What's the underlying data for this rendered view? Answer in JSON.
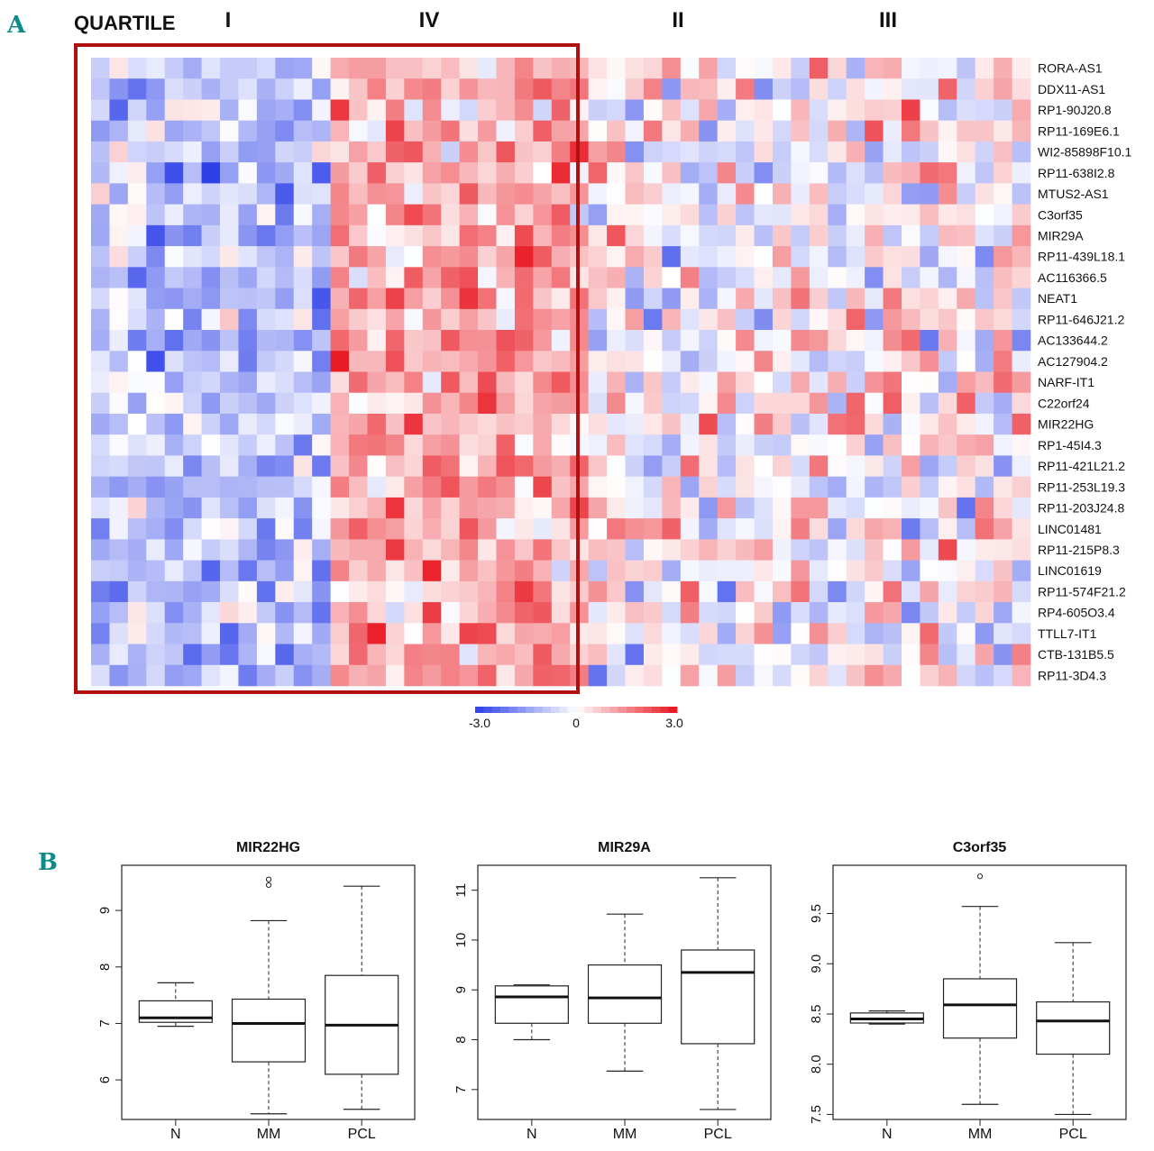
{
  "panel_a_label": "A",
  "panel_b_label": "B",
  "colors": {
    "accent": "#0d8a8a",
    "highlight_box": "#b01010",
    "low": "#2a3ee8",
    "mid": "#ffffff",
    "high": "#e8101a"
  },
  "chart_data": [
    {
      "type": "heatmap",
      "title": "",
      "group_header_label": "QUARTILE",
      "column_groups": [
        {
          "label": "I",
          "highlighted": true
        },
        {
          "label": "IV",
          "highlighted": true
        },
        {
          "label": "II",
          "highlighted": false
        },
        {
          "label": "III",
          "highlighted": false
        }
      ],
      "highlight": "Quartiles I and IV outlined",
      "rows": [
        "RORA-AS1",
        "DDX11-AS1",
        "RP1-90J20.8",
        "RP11-169E6.1",
        "WI2-85898F10.1",
        "RP11-638I2.8",
        "MTUS2-AS1",
        "C3orf35",
        "MIR29A",
        "RP11-439L18.1",
        "AC116366.5",
        "NEAT1",
        "RP11-646J21.2",
        "AC133644.2",
        "AC127904.2",
        "NARF-IT1",
        "C22orf24",
        "MIR22HG",
        "RP1-45I4.3",
        "RP11-421L21.2",
        "RP11-253L19.3",
        "RP11-203J24.8",
        "LINC01481",
        "RP11-215P8.3",
        "LINC01619",
        "RP11-574F21.2",
        "RP4-605O3.4",
        "TTLL7-IT1",
        "CTB-131B5.5",
        "RP11-3D4.3"
      ],
      "n_columns": 51,
      "color_scale": {
        "min": -3.0,
        "mid": 0,
        "max": 3.0,
        "min_label": "-3.0",
        "mid_label": "0",
        "max_label": "3.0"
      }
    },
    {
      "type": "box",
      "title": "MIR22HG",
      "categories": [
        "N",
        "MM",
        "PCL"
      ],
      "y_ticks": [
        "6",
        "7",
        "8",
        "9"
      ],
      "ylim": [
        5.3,
        9.8
      ],
      "boxes": [
        {
          "whislo": 6.95,
          "q1": 7.02,
          "med": 7.1,
          "q3": 7.4,
          "whishi": 7.72,
          "fliers": []
        },
        {
          "whislo": 5.4,
          "q1": 6.32,
          "med": 7.0,
          "q3": 7.43,
          "whishi": 8.82,
          "fliers": [
            9.45,
            9.55
          ]
        },
        {
          "whislo": 5.48,
          "q1": 6.1,
          "med": 6.97,
          "q3": 7.85,
          "whishi": 9.43,
          "fliers": []
        }
      ]
    },
    {
      "type": "box",
      "title": "MIR29A",
      "categories": [
        "N",
        "MM",
        "PCL"
      ],
      "y_ticks": [
        "7",
        "8",
        "9",
        "10",
        "11"
      ],
      "ylim": [
        6.4,
        11.5
      ],
      "boxes": [
        {
          "whislo": 8.0,
          "q1": 8.33,
          "med": 8.86,
          "q3": 9.08,
          "whishi": 9.1,
          "fliers": []
        },
        {
          "whislo": 7.37,
          "q1": 8.33,
          "med": 8.84,
          "q3": 9.5,
          "whishi": 10.52,
          "fliers": []
        },
        {
          "whislo": 6.6,
          "q1": 7.92,
          "med": 9.35,
          "q3": 9.8,
          "whishi": 11.25,
          "fliers": []
        }
      ]
    },
    {
      "type": "box",
      "title": "C3orf35",
      "categories": [
        "N",
        "MM",
        "PCL"
      ],
      "y_ticks": [
        "7.5",
        "8.0",
        "8.5",
        "9.0",
        "9.5"
      ],
      "ylim": [
        7.45,
        9.98
      ],
      "boxes": [
        {
          "whislo": 8.4,
          "q1": 8.41,
          "med": 8.45,
          "q3": 8.51,
          "whishi": 8.53,
          "fliers": []
        },
        {
          "whislo": 7.6,
          "q1": 8.26,
          "med": 8.59,
          "q3": 8.85,
          "whishi": 9.57,
          "fliers": [
            9.87
          ]
        },
        {
          "whislo": 7.5,
          "q1": 8.1,
          "med": 8.43,
          "q3": 8.62,
          "whishi": 9.21,
          "fliers": []
        }
      ]
    }
  ]
}
